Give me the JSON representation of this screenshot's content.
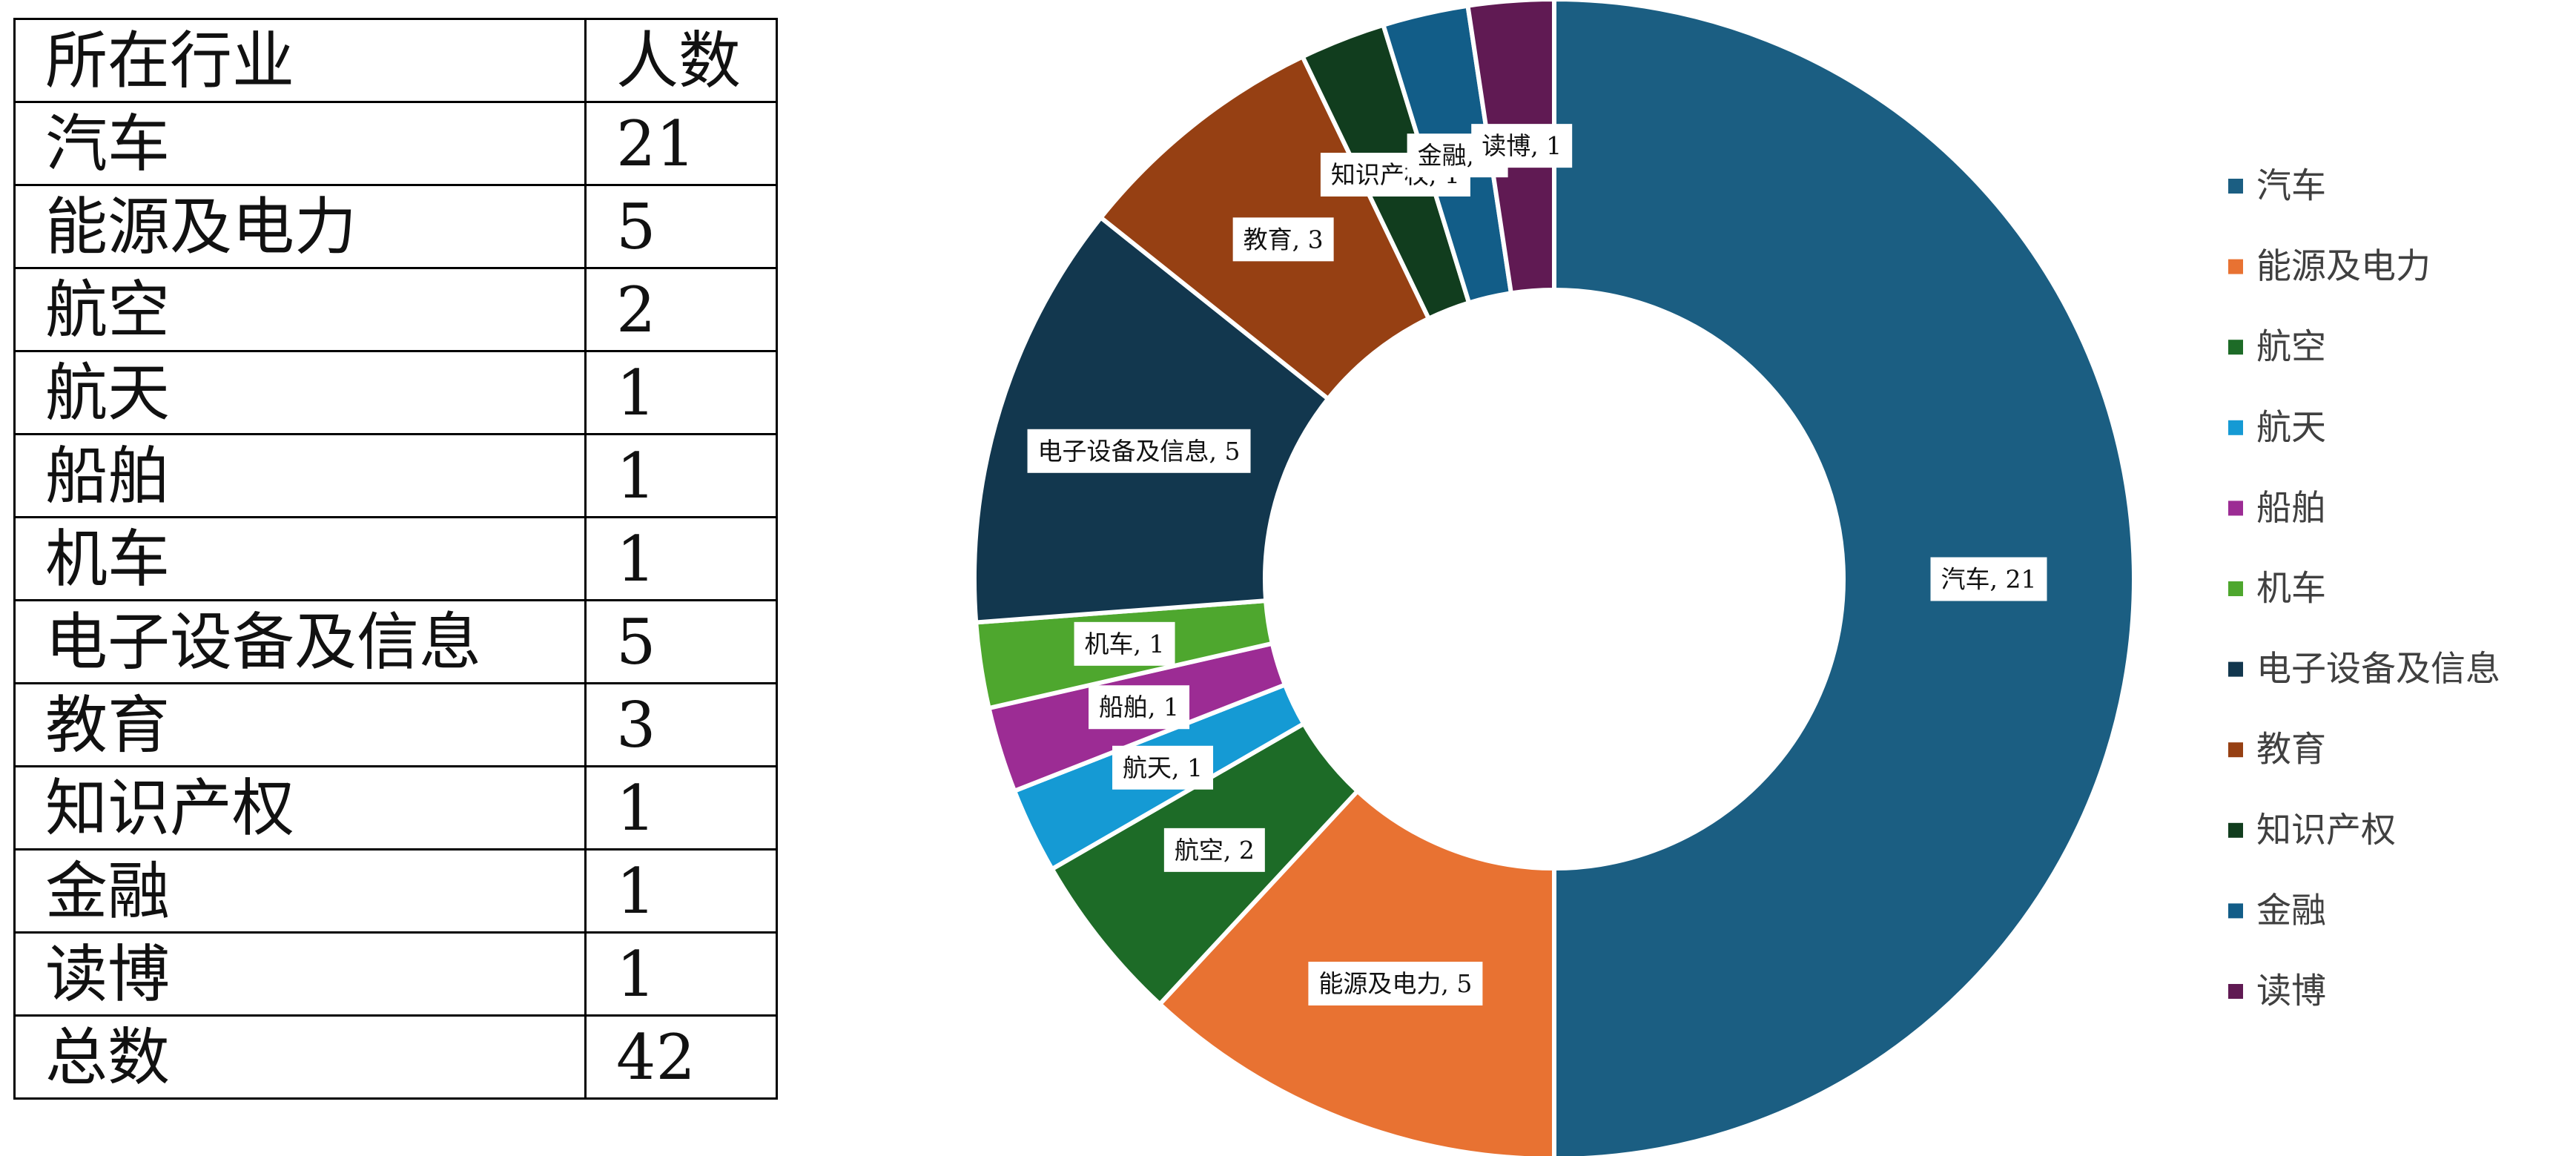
{
  "table": {
    "headers": [
      "所在行业",
      "人数"
    ],
    "rows": [
      [
        "汽车",
        "21"
      ],
      [
        "能源及电力",
        "5"
      ],
      [
        "航空",
        "2"
      ],
      [
        "航天",
        "1"
      ],
      [
        "船舶",
        "1"
      ],
      [
        "机车",
        "1"
      ],
      [
        "电子设备及信息",
        "5"
      ],
      [
        "教育",
        "3"
      ],
      [
        "知识产权",
        "1"
      ],
      [
        "金融",
        "1"
      ],
      [
        "读博",
        "1"
      ],
      [
        "总数",
        "42"
      ]
    ]
  },
  "chart_data": {
    "type": "pie",
    "variant": "donut",
    "categories": [
      "汽车",
      "能源及电力",
      "航空",
      "航天",
      "船舶",
      "机车",
      "电子设备及信息",
      "教育",
      "知识产权",
      "金融",
      "读博"
    ],
    "values": [
      21,
      5,
      2,
      1,
      1,
      1,
      5,
      3,
      1,
      1,
      1
    ],
    "colors": [
      "#1b5e82",
      "#e87232",
      "#1d6b27",
      "#159ad4",
      "#9c2c94",
      "#4ea72e",
      "#12374e",
      "#964013",
      "#113d1e",
      "#125d88",
      "#601a53"
    ],
    "data_labels": [
      "汽车, 21",
      "能源及电力, 5",
      "航空, 2",
      "航天, 1",
      "船舶, 1",
      "机车, 1",
      "电子设备及信息, 5",
      "教育, 3",
      "知识产权, 1",
      "金融, 1",
      "读博, 1"
    ],
    "legend_position": "right"
  }
}
